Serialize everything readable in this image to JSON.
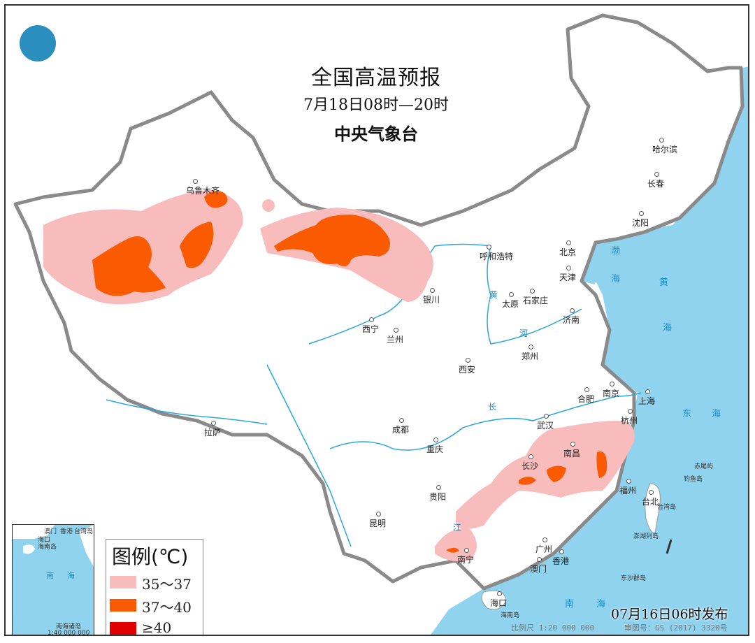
{
  "header": {
    "title": "全国高温预报",
    "time_range": "7月18日08时—20时",
    "agency": "中央气象台"
  },
  "legend": {
    "title": "图例(℃)",
    "items": [
      {
        "label": "35～37",
        "color": "#f9bcbc"
      },
      {
        "label": "37～40",
        "color": "#fa5a00"
      },
      {
        "label": "≥40",
        "color": "#e00000"
      }
    ]
  },
  "cities": [
    "乌鲁木齐",
    "呼和浩特",
    "北京",
    "天津",
    "石家庄",
    "太原",
    "济南",
    "银川",
    "西宁",
    "兰州",
    "西安",
    "郑州",
    "合肥",
    "南京",
    "上海",
    "杭州",
    "武汉",
    "南昌",
    "长沙",
    "福州",
    "台北",
    "成都",
    "重庆",
    "贵阳",
    "昆明",
    "南宁",
    "广州",
    "香港",
    "澳门",
    "海口",
    "拉萨",
    "哈尔滨",
    "长春",
    "沈阳"
  ],
  "seas": [
    "渤",
    "海",
    "黄",
    "海",
    "东",
    "海",
    "南",
    "海"
  ],
  "islands": [
    "台湾岛",
    "钓鱼岛",
    "赤尾屿",
    "澎湖列岛",
    "东沙群岛",
    "海南岛"
  ],
  "rivers": [
    "黄",
    "河",
    "长",
    "江"
  ],
  "inset": {
    "labels": [
      "澳门",
      "香港",
      "台湾岛",
      "海口",
      "海南岛",
      "南",
      "海",
      "南海诸岛"
    ],
    "scale": "1:40 000 000"
  },
  "footer": {
    "issued": "07月16日06时发布",
    "scale": "比例尺 1:20 000 000",
    "review_number": "审图号：GS (2017) 3320号"
  },
  "colors": {
    "sea": "#8fd3ee",
    "border": "#8a8a8a",
    "river": "#2aa7dc"
  }
}
